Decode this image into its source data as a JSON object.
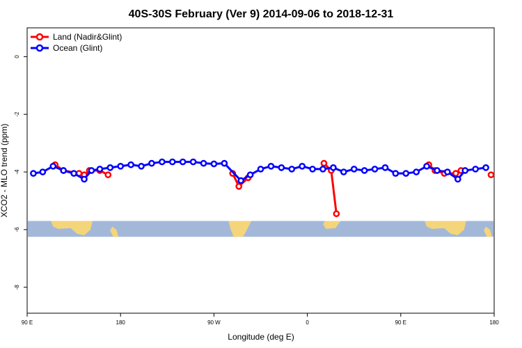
{
  "chart_data": {
    "type": "line",
    "title": "40S-30S February (Ver 9)   2014-09-06 to 2018-12-31",
    "xlabel": "Longitude (deg E)",
    "ylabel": "XCO2 - MLO trend (ppm)",
    "x_axis": {
      "range_deg_east": [
        90,
        360
      ],
      "ticks": [
        {
          "value": 90,
          "label": "90 E"
        },
        {
          "value": 180,
          "label": "180"
        },
        {
          "value": 270,
          "label": "90 W"
        },
        {
          "value": 360,
          "label": "0"
        },
        {
          "value": 450,
          "label": "90 E"
        },
        {
          "value": 540,
          "label": "180"
        }
      ],
      "range": [
        90,
        540
      ]
    },
    "y_axis": {
      "range": [
        -8.9,
        1.0
      ],
      "ticks": [
        0,
        -2,
        -4,
        -6,
        -8
      ]
    },
    "legend": {
      "placement": "top-left",
      "entries": [
        "Land (Nadir&Glint)",
        "Ocean (Glint)"
      ]
    },
    "colors": {
      "land": "#ff0000",
      "ocean": "#0000ff",
      "map_ocean": "#a3b8d9",
      "map_land": "#f5d57a"
    },
    "map_strip": {
      "y_top": -5.7,
      "y_bottom": -6.25
    },
    "series": [
      {
        "name": "Land (Nadir&Glint)",
        "color": "#ff0000",
        "segments": [
          [
            [
              117,
              -3.75
            ],
            [
              125,
              -3.95
            ],
            [
              140,
              -4.05
            ],
            [
              145,
              -4.1
            ],
            [
              150,
              -3.95
            ],
            [
              160,
              -3.95
            ],
            [
              168,
              -4.1
            ]
          ],
          [
            [
              288,
              -4.05
            ],
            [
              294,
              -4.5
            ],
            [
              303,
              -4.2
            ]
          ],
          [
            [
              376,
              -3.7
            ],
            [
              383,
              -3.95
            ],
            [
              388,
              -5.45
            ]
          ],
          [
            [
              477,
              -3.75
            ],
            [
              483,
              -3.95
            ],
            [
              492,
              -4.05
            ],
            [
              503,
              -4.05
            ],
            [
              508,
              -3.95
            ]
          ],
          [
            [
              537,
              -4.1
            ]
          ]
        ]
      },
      {
        "name": "Ocean (Glint)",
        "color": "#0000ff",
        "points": [
          [
            96,
            -4.05
          ],
          [
            105,
            -4.0
          ],
          [
            115,
            -3.8
          ],
          [
            125,
            -3.95
          ],
          [
            135,
            -4.05
          ],
          [
            145,
            -4.25
          ],
          [
            152,
            -3.95
          ],
          [
            160,
            -3.9
          ],
          [
            170,
            -3.85
          ],
          [
            180,
            -3.8
          ],
          [
            190,
            -3.75
          ],
          [
            200,
            -3.8
          ],
          [
            210,
            -3.7
          ],
          [
            220,
            -3.65
          ],
          [
            230,
            -3.65
          ],
          [
            240,
            -3.65
          ],
          [
            250,
            -3.65
          ],
          [
            260,
            -3.7
          ],
          [
            270,
            -3.72
          ],
          [
            280,
            -3.7
          ],
          [
            296,
            -4.3
          ],
          [
            305,
            -4.1
          ],
          [
            315,
            -3.9
          ],
          [
            325,
            -3.8
          ],
          [
            335,
            -3.85
          ],
          [
            345,
            -3.9
          ],
          [
            355,
            -3.8
          ],
          [
            365,
            -3.9
          ],
          [
            375,
            -3.9
          ],
          [
            385,
            -3.85
          ],
          [
            395,
            -4.0
          ],
          [
            405,
            -3.9
          ],
          [
            415,
            -3.95
          ],
          [
            425,
            -3.9
          ],
          [
            435,
            -3.85
          ],
          [
            445,
            -4.05
          ],
          [
            455,
            -4.05
          ],
          [
            465,
            -4.0
          ],
          [
            475,
            -3.8
          ],
          [
            485,
            -3.95
          ],
          [
            495,
            -4.0
          ],
          [
            505,
            -4.25
          ],
          [
            512,
            -3.95
          ],
          [
            522,
            -3.9
          ],
          [
            532,
            -3.85
          ]
        ]
      }
    ]
  }
}
